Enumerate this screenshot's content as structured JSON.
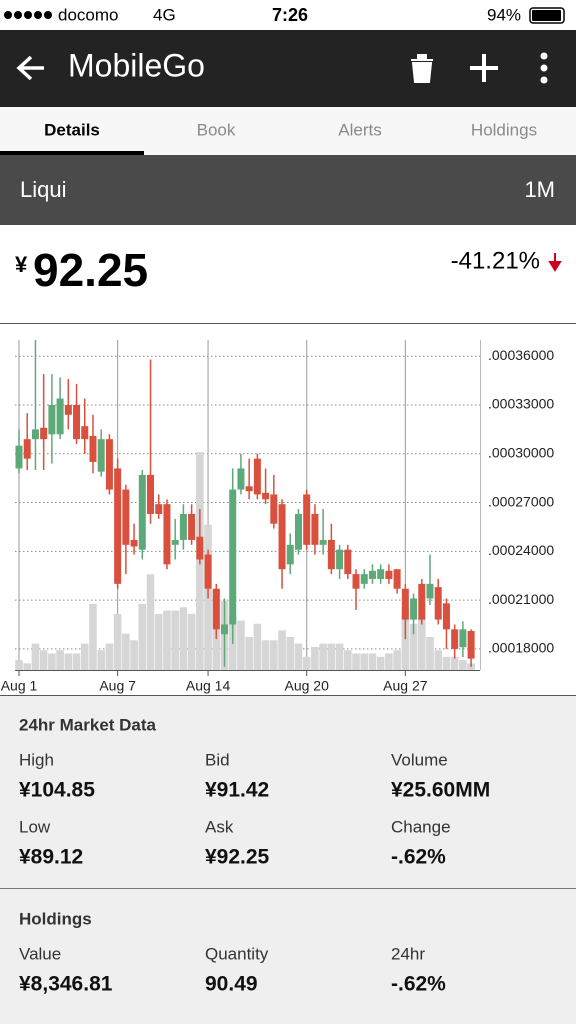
{
  "status_bar": {
    "carrier": "docomo",
    "network": "4G",
    "time": "7:26",
    "battery": "94%"
  },
  "header": {
    "title": "MobileGo"
  },
  "tabs": [
    "Details",
    "Book",
    "Alerts",
    "Holdings"
  ],
  "exchange": {
    "name": "Liqui",
    "range": "1M"
  },
  "price": {
    "currency": "¥",
    "value": "92.25",
    "change": "-41.21%"
  },
  "chart_data": {
    "type": "candlestick",
    "categories": [
      "Aug 1",
      null,
      null,
      null,
      null,
      null,
      null,
      null,
      null,
      null,
      null,
      null,
      "Aug 7",
      null,
      null,
      null,
      null,
      null,
      null,
      null,
      null,
      null,
      null,
      "Aug 14",
      null,
      null,
      null,
      null,
      null,
      null,
      null,
      null,
      null,
      null,
      null,
      "Aug 20",
      null,
      null,
      null,
      null,
      null,
      null,
      null,
      null,
      null,
      null,
      null,
      "Aug 27",
      null,
      null,
      null,
      null,
      null,
      null,
      null,
      null
    ],
    "open": [
      0.000291,
      0.000309,
      0.000309,
      0.000316,
      0.000312,
      0.000312,
      0.00033,
      0.00033,
      0.000317,
      0.000311,
      0.000289,
      0.000309,
      0.000291,
      0.000278,
      0.000247,
      0.000241,
      0.000287,
      0.000269,
      0.000269,
      0.000244,
      0.000247,
      0.000263,
      0.000249,
      0.000238,
      0.000217,
      0.000189,
      0.000195,
      0.000278,
      0.00028,
      0.000297,
      0.000276,
      0.000275,
      0.000269,
      0.000232,
      0.000241,
      0.000275,
      0.000263,
      0.000244,
      0.000247,
      0.000229,
      0.000241,
      0.000226,
      0.00022,
      0.000223,
      0.000223,
      0.000228,
      0.000229,
      0.000217,
      0.000198,
      0.00022,
      0.000211,
      0.000218,
      0.000208,
      0.000192,
      0.000181,
      0.000191
    ],
    "high": [
      0.000315,
      0.000325,
      0.00037,
      0.000349,
      0.000349,
      0.000347,
      0.000346,
      0.000343,
      0.000334,
      0.000324,
      0.000315,
      0.000312,
      0.000297,
      0.000281,
      0.000257,
      0.00029,
      0.000358,
      0.000275,
      0.000272,
      0.00026,
      0.000269,
      0.000269,
      0.000266,
      0.000241,
      0.00022,
      0.000211,
      0.000291,
      0.0003,
      0.000297,
      0.0003,
      0.000291,
      0.000287,
      0.000272,
      0.000251,
      0.000266,
      0.000278,
      0.000269,
      0.000266,
      0.000257,
      0.000244,
      0.000244,
      0.000229,
      0.000229,
      0.000232,
      0.000232,
      0.000232,
      0.000229,
      0.00022,
      0.000214,
      0.000223,
      0.000238,
      0.000223,
      0.000211,
      0.000195,
      0.000197,
      0.000192
    ],
    "low": [
      0.000288,
      0.00029,
      0.00029,
      0.00029,
      0.000294,
      0.000309,
      0.000315,
      0.000306,
      0.0003,
      0.000288,
      0.000286,
      0.000275,
      0.000217,
      0.000226,
      0.000238,
      0.000235,
      0.000257,
      0.00026,
      0.000229,
      0.000235,
      0.000241,
      0.000244,
      0.000232,
      0.000211,
      0.000186,
      0.000169,
      0.000183,
      0.000275,
      0.000272,
      0.000272,
      0.000269,
      0.000254,
      0.000217,
      0.000226,
      0.000238,
      0.000241,
      0.000238,
      0.000238,
      0.000226,
      0.000223,
      0.000223,
      0.000204,
      0.000217,
      0.00022,
      0.00022,
      0.00022,
      0.000214,
      0.000186,
      0.000189,
      0.000195,
      0.000207,
      0.000195,
      0.00018,
      0.000174,
      0.000175,
      0.000169
    ],
    "close": [
      0.000305,
      0.000297,
      0.000315,
      0.000309,
      0.00033,
      0.000334,
      0.000324,
      0.000309,
      0.000309,
      0.000295,
      0.000309,
      0.000278,
      0.00022,
      0.000244,
      0.000243,
      0.000287,
      0.000263,
      0.000263,
      0.000232,
      0.000247,
      0.000263,
      0.000247,
      0.000235,
      0.000217,
      0.000192,
      0.000195,
      0.000278,
      0.000291,
      0.000277,
      0.000275,
      0.000272,
      0.000257,
      0.000229,
      0.000244,
      0.000263,
      0.000244,
      0.000244,
      0.000247,
      0.000229,
      0.000241,
      0.000226,
      0.000217,
      0.000226,
      0.000228,
      0.000229,
      0.000223,
      0.000217,
      0.000198,
      0.000211,
      0.000198,
      0.00022,
      0.000198,
      0.000192,
      0.00018,
      0.000192,
      0.000174
    ],
    "volume": [
      3,
      2,
      8,
      6,
      5,
      6,
      5,
      5,
      8,
      20,
      6,
      8,
      17,
      11,
      9,
      20,
      29,
      17,
      18,
      18,
      19,
      17,
      66,
      44,
      24,
      21,
      16,
      15,
      10,
      14,
      9,
      9,
      12,
      10,
      8,
      4,
      7,
      8,
      8,
      8,
      6,
      5,
      5,
      5,
      4,
      5,
      6,
      19,
      14,
      16,
      10,
      6,
      4,
      4,
      3,
      2
    ],
    "up_color": "#5ea97a",
    "down_color": "#d9503f",
    "volume_color": "#d6d6d6",
    "ylim": [
      0.000167,
      0.00037
    ],
    "yticks": [
      {
        "value": 0.00018,
        "label": ".00018000"
      },
      {
        "value": 0.00021,
        "label": ".00021000"
      },
      {
        "value": 0.00024,
        "label": ".00024000"
      },
      {
        "value": 0.00027,
        "label": ".00027000"
      },
      {
        "value": 0.0003,
        "label": ".00030000"
      },
      {
        "value": 0.00033,
        "label": ".00033000"
      },
      {
        "value": 0.00036,
        "label": ".00036000"
      }
    ],
    "y2lim": [
      0,
      100
    ],
    "grid": true
  },
  "market_data": {
    "title": "24hr Market Data",
    "items": [
      {
        "label": "High",
        "value": "¥104.85"
      },
      {
        "label": "Bid",
        "value": "¥91.42"
      },
      {
        "label": "Volume",
        "value": "¥25.60MM"
      },
      {
        "label": "Low",
        "value": "¥89.12"
      },
      {
        "label": "Ask",
        "value": "¥92.25"
      },
      {
        "label": "Change",
        "value": "-.62%"
      }
    ]
  },
  "holdings": {
    "title": "Holdings",
    "items": [
      {
        "label": "Value",
        "value": "¥8,346.81"
      },
      {
        "label": "Quantity",
        "value": "90.49"
      },
      {
        "label": "24hr",
        "value": "-.62%"
      }
    ]
  }
}
